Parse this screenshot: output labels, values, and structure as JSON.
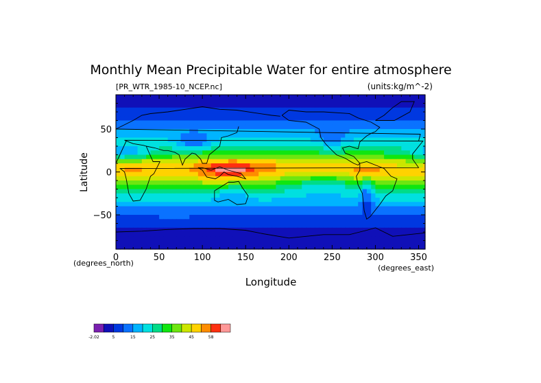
{
  "chart_data": {
    "type": "heatmap",
    "title": "Monthly Mean Precipitable Water for entire atmosphere",
    "subtitle_left": "[PR_WTR_1985-10_NCEP.nc]",
    "subtitle_right": "(units:kg/m^-2)",
    "xlabel": "Longitude",
    "ylabel": "Latitude",
    "x_unit_label": "(degrees_east)",
    "y_unit_label": "(degrees_north)",
    "xlim": [
      0,
      357.5
    ],
    "ylim": [
      -90,
      90
    ],
    "x_ticks": [
      0,
      50,
      100,
      150,
      200,
      250,
      300,
      350
    ],
    "y_ticks": [
      -50,
      0,
      50
    ],
    "colorbar": {
      "levels": [
        -2.02,
        0,
        5,
        10,
        15,
        20,
        25,
        30,
        35,
        40,
        45,
        50,
        55,
        58
      ],
      "tick_labels": [
        "-2.02",
        "5",
        "15",
        "25",
        "35",
        "45",
        "58"
      ],
      "colors": [
        "#7a1fb0",
        "#1010b8",
        "#0038e0",
        "#0a72ff",
        "#00b4ff",
        "#00e0e0",
        "#00dc88",
        "#10e610",
        "#6ee610",
        "#cce600",
        "#ffd200",
        "#ff8c00",
        "#ff3010",
        "#ff9898"
      ]
    },
    "zonal_profile": {
      "description_lat_deg": [
        90,
        80,
        70,
        60,
        50,
        40,
        30,
        20,
        10,
        0,
        -10,
        -20,
        -30,
        -40,
        -50,
        -60,
        -70,
        -80,
        -90
      ],
      "values": [
        1,
        3,
        6,
        10,
        15,
        20,
        25,
        32,
        44,
        47,
        40,
        30,
        22,
        16,
        11,
        7,
        3,
        1,
        0.5
      ]
    }
  }
}
